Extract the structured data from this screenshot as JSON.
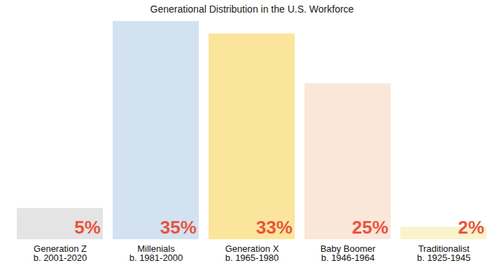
{
  "chart_data": {
    "type": "bar",
    "title": "Generational Distribution in the U.S. Workforce",
    "categories": [
      "Generation Z\nb. 2001-2020",
      "Millenials\nb. 1981-2000",
      "Generation X\nb. 1965-1980",
      "Baby Boomer\nb. 1946-1964",
      "Traditionalist\nb. 1925-1945"
    ],
    "values": [
      5,
      35,
      33,
      25,
      2
    ],
    "value_labels": [
      "5%",
      "35%",
      "33%",
      "25%",
      "2%"
    ],
    "colors": [
      "#e4e4e4",
      "#d3e2f0",
      "#fbe59c",
      "#fbe6da",
      "#f9f4cc"
    ],
    "ylim": [
      0,
      35
    ],
    "data_labels": true,
    "tick_labels": "x"
  }
}
